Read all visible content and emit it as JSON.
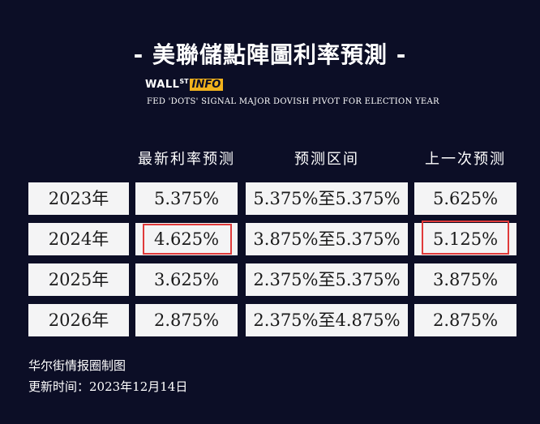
{
  "title": "- 美聯儲點陣圖利率預測 -",
  "logo": {
    "wall": "WALL",
    "st": "ST",
    "info": "INFO"
  },
  "subtitle": "FED 'DOTS' SIGNAL MAJOR DOVISH PIVOT FOR ELECTION YEAR",
  "table": {
    "headers": [
      "最新利率预测",
      "预测区间",
      "上一次预测"
    ],
    "rows": [
      {
        "year": "2023年",
        "latest": "5.375%",
        "range": "5.375%至5.375%",
        "previous": "5.625%"
      },
      {
        "year": "2024年",
        "latest": "4.625%",
        "range": "3.875%至5.375%",
        "previous": "5.125%"
      },
      {
        "year": "2025年",
        "latest": "3.625%",
        "range": "2.375%至5.375%",
        "previous": "3.875%"
      },
      {
        "year": "2026年",
        "latest": "2.875%",
        "range": "2.375%至4.875%",
        "previous": "2.875%"
      }
    ],
    "highlight_color": "#e03a3a"
  },
  "footer": {
    "source": "华尔街情报圈制图",
    "updated": "更新时间：2023年12月14日"
  },
  "colors": {
    "background": "#0c0e26",
    "cell": "#f4f4f5",
    "logo_accent": "#f2b21c"
  }
}
